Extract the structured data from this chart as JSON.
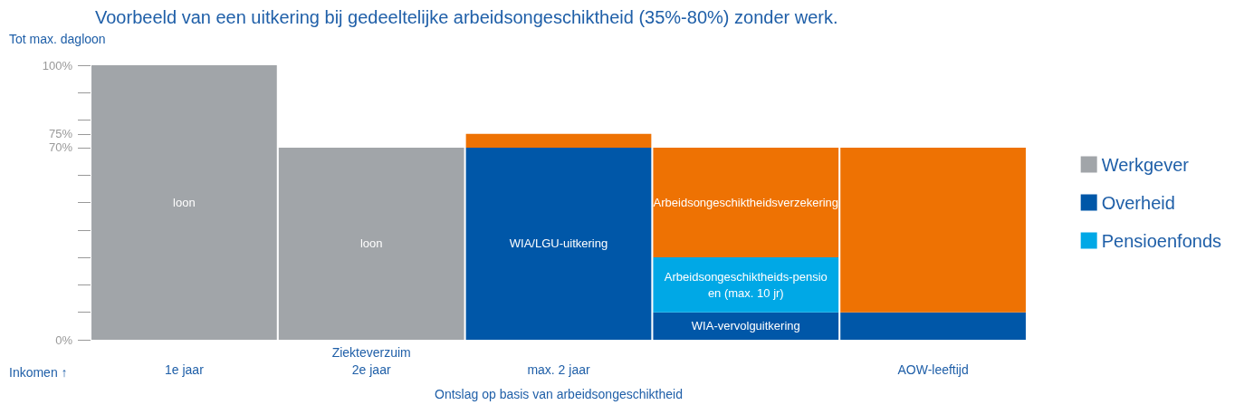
{
  "chart_data": {
    "type": "bar",
    "title": "Voorbeeld van een uitkering bij gedeeltelijke arbeidsongeschiktheid (35%-80%) zonder werk.",
    "ylabel": "Tot max. dagloon",
    "categories": [
      "1e jaar",
      "2e jaar",
      "max. 2 jaar",
      null,
      "AOW-leeftijd"
    ],
    "stacked": true,
    "ylim": [
      0,
      100
    ],
    "yticks": [
      {
        "value": 0,
        "label": "0%"
      },
      {
        "value": 10,
        "label": null
      },
      {
        "value": 20,
        "label": null
      },
      {
        "value": 30,
        "label": null
      },
      {
        "value": 40,
        "label": null
      },
      {
        "value": 50,
        "label": null
      },
      {
        "value": 60,
        "label": null
      },
      {
        "value": 70,
        "label": "70%"
      },
      {
        "value": 75,
        "label": "75%"
      },
      {
        "value": 80,
        "label": null
      },
      {
        "value": 90,
        "label": null
      },
      {
        "value": 100,
        "label": "100%"
      }
    ],
    "series": [
      {
        "name": "Werkgever",
        "color": "#a1a5a9",
        "values": [
          100,
          70,
          null,
          null,
          null
        ],
        "value_labels": [
          "loon",
          "loon",
          null,
          null,
          null
        ]
      },
      {
        "name": "Overheid",
        "color": "#0057a8",
        "values": [
          null,
          null,
          70,
          10,
          10
        ],
        "value_labels": [
          null,
          null,
          "WIA/LGU-uitkering",
          "WIA-vervolguitkering",
          null
        ]
      },
      {
        "name": "Pensioenfonds",
        "color": "#00a8e6",
        "values": [
          null,
          null,
          null,
          20,
          null
        ]
      },
      {
        "color": "#ee7203",
        "values": [
          null,
          null,
          5,
          40,
          60
        ],
        "value_labels": [
          null,
          null,
          null,
          "Arbeidsongeschiktheidsverzekering",
          null
        ]
      }
    ],
    "annotations": [
      "Ziekteverzuim",
      "Inkomen ↑",
      "Ontslag op basis van arbeidsongeschiktheid",
      "Arbeidsongeschiktheids-pensioen (max. 10 jr)"
    ],
    "legend": "right",
    "grid": false
  }
}
